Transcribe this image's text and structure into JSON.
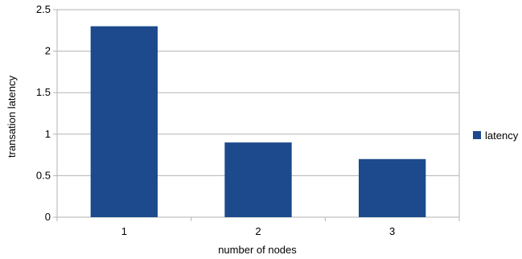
{
  "chart_data": {
    "type": "bar",
    "title": "",
    "xlabel": "number of nodes",
    "ylabel": "transation latency",
    "categories": [
      "1",
      "2",
      "3"
    ],
    "series": [
      {
        "name": "latency",
        "values": [
          2.3,
          0.9,
          0.7
        ],
        "color": "#1c4a8c"
      }
    ],
    "ylim": [
      0,
      2.5
    ],
    "y_ticks": [
      0,
      0.5,
      1,
      1.5,
      2,
      2.5
    ],
    "y_tick_labels": [
      "0",
      "0.5",
      "1",
      "1.5",
      "2",
      "2.5"
    ],
    "grid": true,
    "grid_color": "#b3b3b3",
    "legend_position": "right"
  }
}
